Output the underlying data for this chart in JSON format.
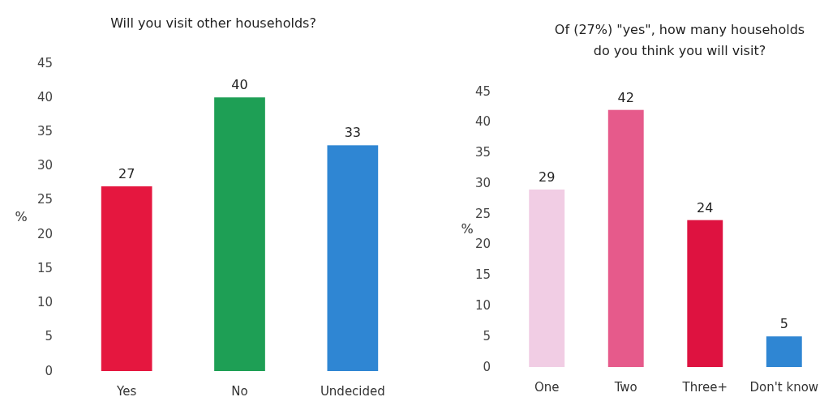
{
  "chart_data": [
    {
      "type": "bar",
      "title": "Will you visit other households?",
      "ylabel": "%",
      "categories": [
        "Yes",
        "No",
        "Undecided"
      ],
      "values": [
        27,
        40,
        33
      ],
      "colors": [
        "#e5173f",
        "#1e9f55",
        "#2f86d3"
      ],
      "ylim": [
        0,
        45
      ],
      "yticks": [
        0,
        5,
        10,
        15,
        20,
        25,
        30,
        35,
        40,
        45
      ],
      "data_labels": true,
      "grid": false
    },
    {
      "type": "bar",
      "title": "Of (27%) \"yes\", how many households do you think you will visit?",
      "ylabel": "%",
      "categories": [
        "One",
        "Two",
        "Three+",
        "Don't know"
      ],
      "values": [
        29,
        42,
        24,
        5
      ],
      "colors": [
        "#f1cde4",
        "#e65a8b",
        "#de1240",
        "#2f86d3"
      ],
      "ylim": [
        0,
        45
      ],
      "yticks": [
        0,
        5,
        10,
        15,
        20,
        25,
        30,
        35,
        40,
        45
      ],
      "data_labels": true,
      "grid": false
    }
  ]
}
